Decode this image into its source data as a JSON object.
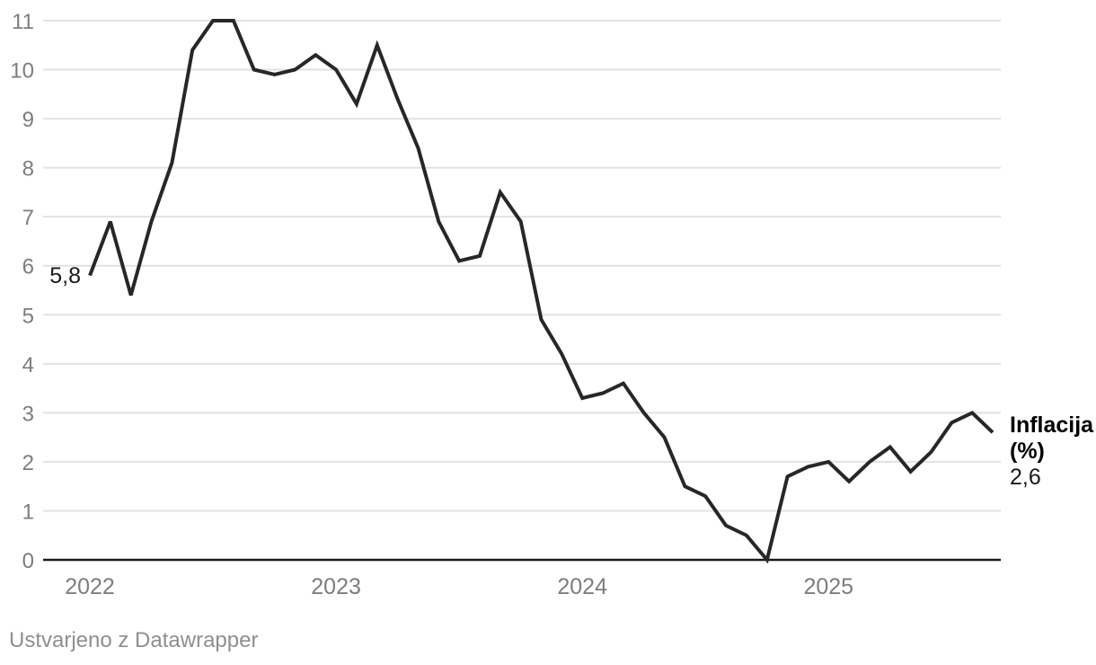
{
  "chart_data": {
    "type": "line",
    "title": "",
    "x_start": "2022-01",
    "x_step": "1 month",
    "x_tick_labels": [
      "2022",
      "2023",
      "2024",
      "2025"
    ],
    "y_ticks": [
      0,
      1,
      2,
      3,
      4,
      5,
      6,
      7,
      8,
      9,
      10,
      11
    ],
    "ylim": [
      0,
      11
    ],
    "grid": "horizontal-only",
    "legend_position": "end-of-line",
    "series": [
      {
        "name": "Inflacija",
        "unit": "(%)",
        "values": [
          5.8,
          6.9,
          5.4,
          6.9,
          8.1,
          10.4,
          11.0,
          11.0,
          10.0,
          9.9,
          10.0,
          10.3,
          10.0,
          9.3,
          10.5,
          9.4,
          8.4,
          6.9,
          6.1,
          6.2,
          7.5,
          6.9,
          4.9,
          4.2,
          3.3,
          3.4,
          3.6,
          3.0,
          2.5,
          1.5,
          1.3,
          0.7,
          0.5,
          0.0,
          1.7,
          1.9,
          2.0,
          1.6,
          2.0,
          2.3,
          1.8,
          2.2,
          2.8,
          3.0,
          2.6
        ]
      }
    ],
    "first_point_label": "5,8",
    "last_point_label": "2,6"
  },
  "annotations": {
    "start_value": "5,8",
    "series_name": "Inflacija",
    "series_unit": "(%)",
    "end_value": "2,6"
  },
  "footer": {
    "attribution": "Ustvarjeno z Datawrapper"
  },
  "colors": {
    "line": "#272727",
    "gridline": "#e2e2e2",
    "baseline": "#1a1a1a",
    "axis_label": "#7d7d7d",
    "annotation": "#1a1a1a",
    "footer_text": "#8f8f8f"
  }
}
